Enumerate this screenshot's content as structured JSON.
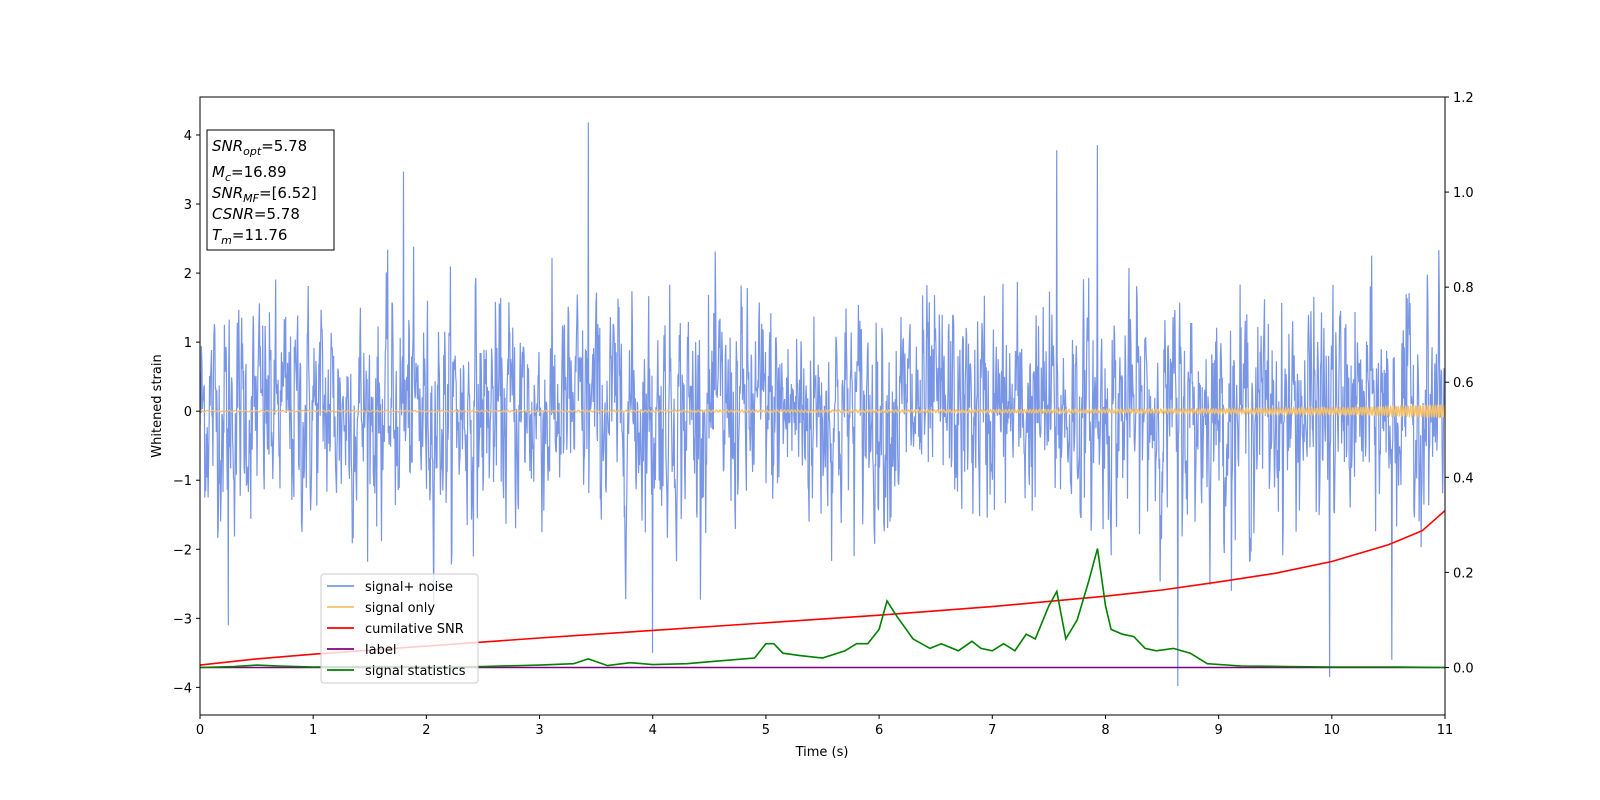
{
  "chart_data": {
    "type": "line",
    "xlabel": "Time (s)",
    "ylabel": "Whitened strain",
    "xlim": [
      0,
      11
    ],
    "ylim": [
      -4.4,
      4.55
    ],
    "y2lim": [
      -0.1,
      1.2
    ],
    "x_ticks": [
      0,
      1,
      2,
      3,
      4,
      5,
      6,
      7,
      8,
      9,
      10,
      11
    ],
    "y_ticks": [
      -4,
      -3,
      -2,
      -1,
      0,
      1,
      2,
      3,
      4
    ],
    "y2_ticks": [
      "0.0",
      "0.2",
      "0.4",
      "0.6",
      "0.8",
      "1.0",
      "1.2"
    ],
    "grid": false,
    "legend_position": "lower-left",
    "info_box": [
      {
        "sym": "SNR",
        "sub": "opt",
        "value": "=5.78"
      },
      {
        "sym": "M",
        "sub": "c",
        "value": "=16.89"
      },
      {
        "sym": "SNR",
        "sub": "MF",
        "value": "=[6.52]"
      },
      {
        "sym": "CSNR",
        "sub": "",
        "value": "=5.78"
      },
      {
        "sym": "T",
        "sub": "m",
        "value": "=11.76"
      }
    ],
    "series": [
      {
        "name": "signal+ noise",
        "color": "#7895e6",
        "axis": "left",
        "kind": "noise",
        "amplitude_scale": 0.78,
        "spikes": [
          [
            3.43,
            4.18
          ],
          [
            7.93,
            3.85
          ],
          [
            8.64,
            -3.98
          ],
          [
            9.98,
            -3.85
          ],
          [
            1.8,
            3.47
          ],
          [
            4.0,
            -3.5
          ],
          [
            10.53,
            -3.6
          ],
          [
            7.57,
            3.78
          ],
          [
            0.25,
            -3.1
          ]
        ]
      },
      {
        "name": "signal only",
        "color": "#f5c26b",
        "axis": "left",
        "kind": "chirp",
        "x": [
          0,
          2,
          4,
          6,
          8,
          9,
          10,
          10.5,
          11
        ],
        "envelope": [
          0.01,
          0.012,
          0.015,
          0.02,
          0.028,
          0.035,
          0.05,
          0.07,
          0.1
        ]
      },
      {
        "name": "cumilative SNR",
        "color": "#ff0000",
        "axis": "right",
        "x": [
          0,
          0.5,
          1,
          2,
          3,
          4,
          5,
          6,
          7,
          8,
          8.5,
          9,
          9.5,
          10,
          10.5,
          10.8,
          11
        ],
        "y": [
          0.005,
          0.018,
          0.028,
          0.045,
          0.062,
          0.078,
          0.094,
          0.11,
          0.128,
          0.15,
          0.163,
          0.18,
          0.198,
          0.223,
          0.258,
          0.288,
          0.33
        ]
      },
      {
        "name": "label",
        "color": "#800080",
        "axis": "right",
        "x": [
          0,
          11
        ],
        "y": [
          0,
          0
        ]
      },
      {
        "name": "signal statistics",
        "color": "#008000",
        "axis": "right",
        "x": [
          0,
          0.3,
          0.5,
          0.7,
          1,
          1.5,
          2,
          2.5,
          3,
          3.3,
          3.43,
          3.6,
          3.8,
          4,
          4.3,
          4.6,
          4.9,
          5.0,
          5.07,
          5.15,
          5.3,
          5.5,
          5.7,
          5.8,
          5.9,
          6.0,
          6.07,
          6.15,
          6.3,
          6.45,
          6.55,
          6.7,
          6.82,
          6.9,
          7.0,
          7.1,
          7.2,
          7.3,
          7.38,
          7.5,
          7.57,
          7.65,
          7.75,
          7.85,
          7.93,
          8.0,
          8.05,
          8.15,
          8.25,
          8.35,
          8.45,
          8.6,
          8.75,
          8.9,
          9.2,
          9.6,
          10,
          10.5,
          11
        ],
        "y": [
          0,
          0.002,
          0.005,
          0.003,
          0.001,
          0.002,
          0.001,
          0.002,
          0.005,
          0.008,
          0.018,
          0.004,
          0.01,
          0.006,
          0.008,
          0.014,
          0.02,
          0.05,
          0.05,
          0.03,
          0.025,
          0.02,
          0.035,
          0.05,
          0.05,
          0.08,
          0.14,
          0.11,
          0.06,
          0.04,
          0.05,
          0.035,
          0.055,
          0.04,
          0.035,
          0.05,
          0.035,
          0.07,
          0.06,
          0.13,
          0.16,
          0.06,
          0.1,
          0.18,
          0.25,
          0.13,
          0.08,
          0.07,
          0.065,
          0.04,
          0.035,
          0.04,
          0.03,
          0.008,
          0.003,
          0.002,
          0.001,
          0.001,
          0
        ]
      }
    ]
  }
}
